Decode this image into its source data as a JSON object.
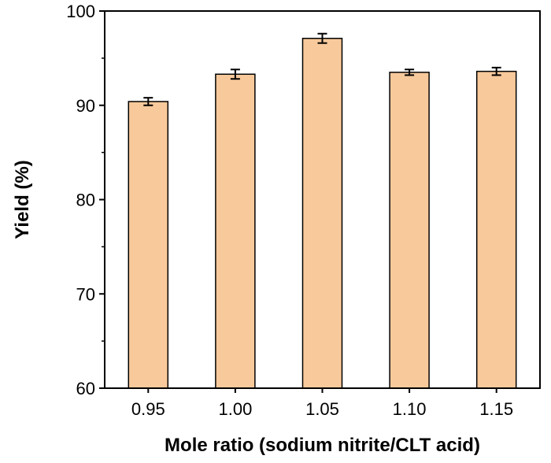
{
  "chart_data": {
    "type": "bar",
    "title": "",
    "xlabel": "Mole ratio (sodium nitrite/CLT acid)",
    "ylabel": "Yield (%)",
    "categories": [
      "0.95",
      "1.00",
      "1.05",
      "1.10",
      "1.15"
    ],
    "values": [
      90.4,
      93.3,
      97.1,
      93.5,
      93.6
    ],
    "errors": [
      0.4,
      0.5,
      0.5,
      0.3,
      0.4
    ],
    "ylim": [
      60,
      100
    ],
    "yticks": [
      60,
      70,
      80,
      90,
      100
    ],
    "ytick_labels": [
      "60",
      "70",
      "80",
      "90",
      "100"
    ],
    "grid": false,
    "legend": "none",
    "colors": {
      "bar_fill": "#f8c99b",
      "bar_stroke": "#000000",
      "axis": "#000000",
      "error_bar": "#000000"
    }
  }
}
